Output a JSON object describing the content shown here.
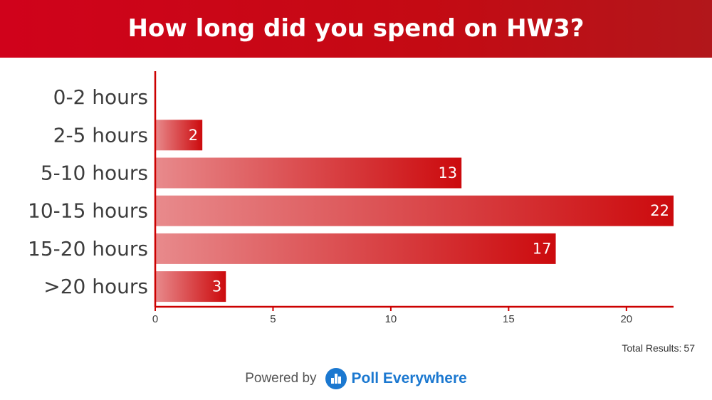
{
  "header": {
    "title": "How long did you spend on HW3?"
  },
  "total": {
    "label": "Total Results:",
    "value": "57"
  },
  "footer": {
    "powered_by": "Powered by",
    "brand": "Poll Everywhere",
    "brand_icon": "poll-everywhere-logo-icon"
  },
  "colors": {
    "header": "#c40a13",
    "bar_start": "#e88a8c",
    "bar_end": "#cc0a0d",
    "axis": "#cc0000",
    "brand": "#1b78d0"
  },
  "chart_data": {
    "type": "bar",
    "orientation": "horizontal",
    "title": "How long did you spend on HW3?",
    "categories": [
      "0-2 hours",
      "2-5 hours",
      "5-10 hours",
      "10-15 hours",
      "15-20 hours",
      ">20 hours"
    ],
    "values": [
      0,
      2,
      13,
      22,
      17,
      3
    ],
    "data_labels": [
      "",
      "2",
      "13",
      "22",
      "17",
      "3"
    ],
    "xlim": [
      0,
      22
    ],
    "xticks": [
      0,
      5,
      10,
      15,
      20
    ],
    "xtick_labels": [
      "0",
      "5",
      "10",
      "15",
      "20"
    ],
    "grid": false,
    "legend": "none"
  }
}
